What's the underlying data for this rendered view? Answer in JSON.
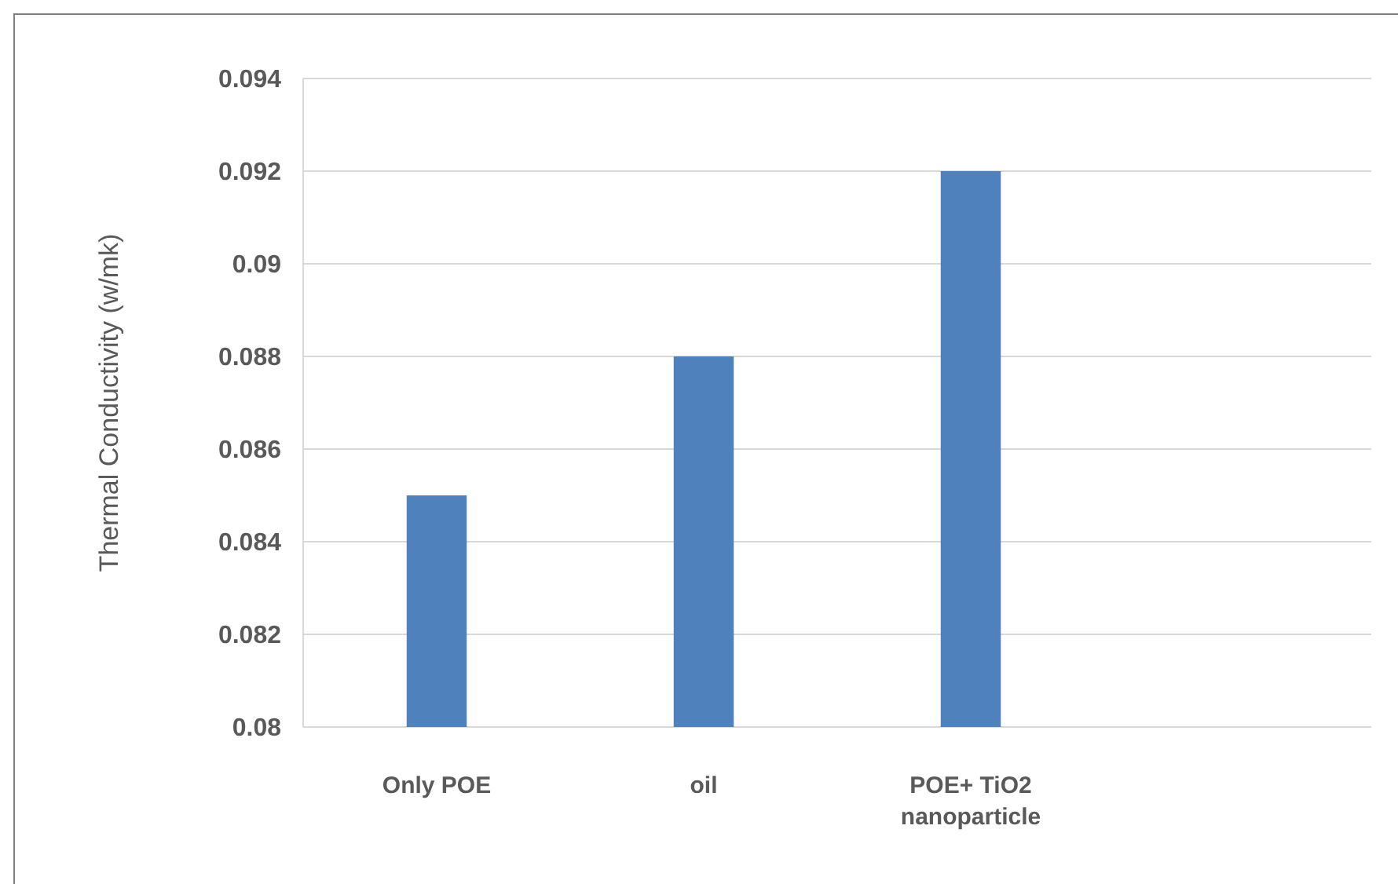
{
  "chart_data": {
    "type": "bar",
    "ylabel": "Thermal Conductivity (w/mk)",
    "categories": [
      "Only POE",
      "oil",
      "POE+ TiO2 nanoparticle",
      null
    ],
    "values": [
      0.085,
      0.088,
      0.092,
      null
    ],
    "color": "#4f81bd",
    "ylim": [
      0.08,
      0.094
    ],
    "yticks": [
      0.08,
      0.082,
      0.084,
      0.086,
      0.088,
      0.09,
      0.092,
      0.094
    ],
    "grid": "y"
  }
}
